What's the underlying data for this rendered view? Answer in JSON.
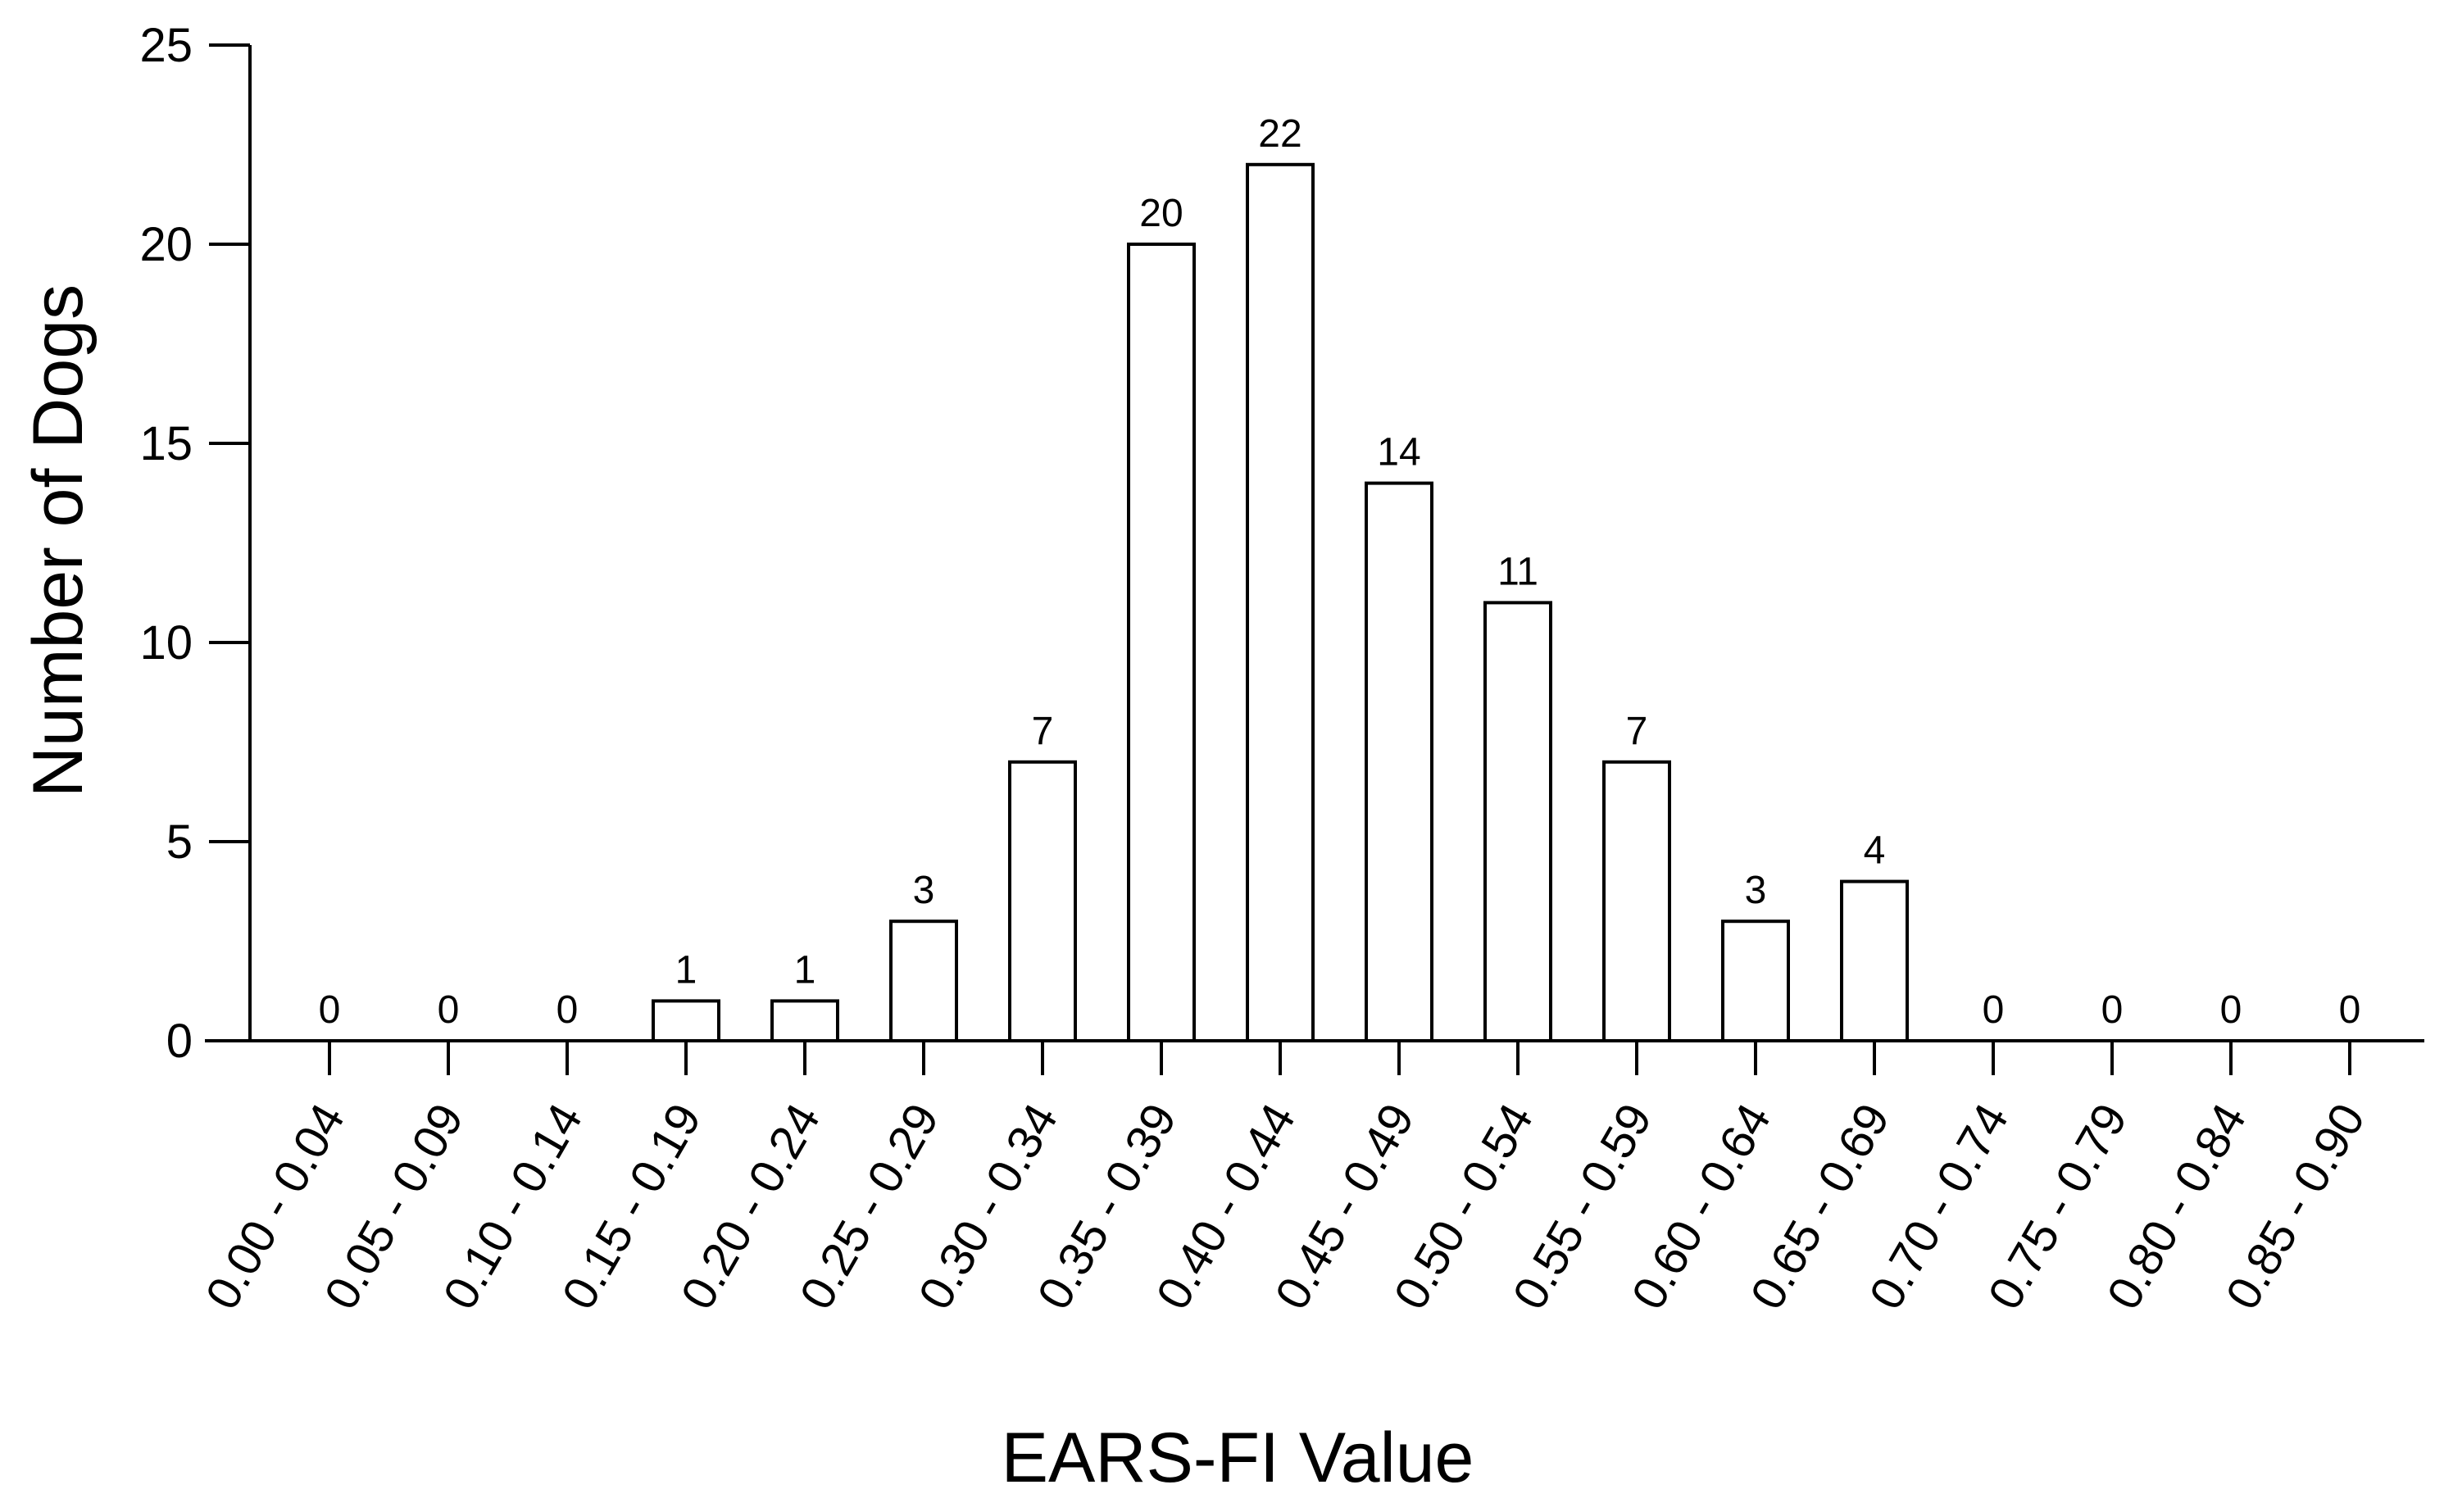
{
  "chart_data": {
    "type": "bar",
    "title": "",
    "xlabel": "EARS-FI Value",
    "ylabel": "Number of Dogs",
    "ylim": [
      0,
      25
    ],
    "yticks": [
      "0",
      "5",
      "10",
      "15",
      "20",
      "25"
    ],
    "grid": false,
    "legend": "none",
    "bar_fill": "#ffffff",
    "bar_stroke": "#000000",
    "categories": [
      "0.00 - 0.04",
      "0.05 - 0.09",
      "0.10 - 0.14",
      "0.15 - 0.19",
      "0.20 - 0.24",
      "0.25 - 0.29",
      "0.30 - 0.34",
      "0.35 - 0.39",
      "0.40 - 0.44",
      "0.45 - 0.49",
      "0.50 - 0.54",
      "0.55 - 0.59",
      "0.60 - 0.64",
      "0.65 - 0.69",
      "0.70 - 0.74",
      "0.75 - 0.79",
      "0.80 - 0.84",
      "0.85 - 0.90"
    ],
    "values": [
      0,
      0,
      0,
      1,
      1,
      3,
      7,
      20,
      22,
      14,
      11,
      7,
      3,
      4,
      0,
      0,
      0,
      0
    ]
  }
}
